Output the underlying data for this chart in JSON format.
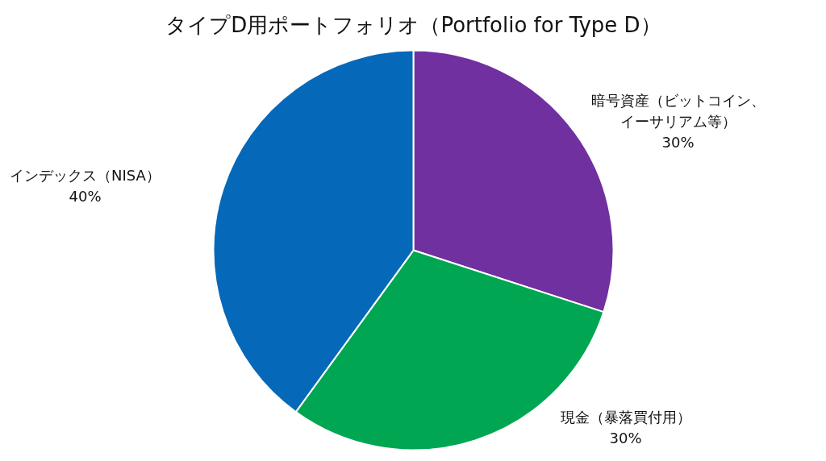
{
  "chart_data": {
    "type": "pie",
    "title": "タイプD用ポートフォリオ（Portfolio for Type D）",
    "categories": [
      "暗号資産（ビットコイン、イーサリアム等）",
      "現金（暴落買付用）",
      "インデックス（NISA）"
    ],
    "values": [
      30,
      30,
      40
    ],
    "colors": [
      "#7030a0",
      "#00a651",
      "#0568b8"
    ],
    "value_labels": [
      "30%",
      "30%",
      "40%"
    ]
  }
}
